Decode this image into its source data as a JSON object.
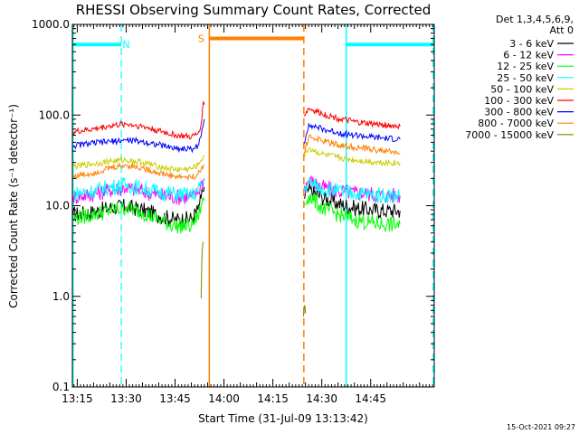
{
  "chart_data": {
    "type": "line",
    "title": "RHESSI Observing Summary Count Rates, Corrected",
    "xlabel": "Start Time (31-Jul-09 13:13:42)",
    "ylabel": "Corrected Count Rate (s⁻¹ detector⁻¹)",
    "ylog": true,
    "ylim": [
      0.1,
      1000
    ],
    "xlim_min": [
      13.5,
      124.5
    ],
    "x_unit": "minutes after 13:00 on 31-Jul-09",
    "x_tick_labels": [
      "13:15",
      "13:30",
      "13:45",
      "14:00",
      "14:15",
      "14:30",
      "14:45"
    ],
    "x_ticks_min": [
      15,
      30,
      45,
      60,
      75,
      90,
      105
    ],
    "y_tick_labels": [
      "0.1",
      "1.0",
      "10.0",
      "100.0",
      "1000.0"
    ],
    "y_ticks": [
      0.1,
      1,
      10,
      100,
      1000
    ],
    "legend_header": [
      "Det 1,3,4,5,6,9,",
      "Att 0"
    ],
    "legend_position": "right",
    "series": [
      {
        "name": "3 - 6 keV",
        "color": "#000000",
        "points": [
          [
            13.7,
            8.0
          ],
          [
            20,
            8.5
          ],
          [
            25,
            9.5
          ],
          [
            30,
            9.8
          ],
          [
            35,
            9.0
          ],
          [
            40,
            7.8
          ],
          [
            45,
            7.0
          ],
          [
            50,
            7.2
          ],
          [
            52,
            9.0
          ],
          [
            53,
            12.0
          ],
          [
            53.5,
            14.5
          ],
          [
            54,
            16.0
          ],
          [
            84.5,
            12.0
          ],
          [
            86,
            15.0
          ],
          [
            90,
            12.5
          ],
          [
            95,
            10.5
          ],
          [
            100,
            9.5
          ],
          [
            105,
            9.0
          ],
          [
            110,
            8.8
          ],
          [
            114,
            8.8
          ]
        ]
      },
      {
        "name": "6 - 12 keV",
        "color": "#ff00ff",
        "points": [
          [
            13.7,
            12.5
          ],
          [
            20,
            13.5
          ],
          [
            25,
            15.0
          ],
          [
            30,
            15.8
          ],
          [
            35,
            14.5
          ],
          [
            40,
            13.0
          ],
          [
            45,
            12.5
          ],
          [
            50,
            12.5
          ],
          [
            52,
            14.0
          ],
          [
            53,
            17.0
          ],
          [
            54,
            20.0
          ],
          [
            84.5,
            15.5
          ],
          [
            86,
            19.0
          ],
          [
            90,
            16.0
          ],
          [
            95,
            14.5
          ],
          [
            100,
            14.0
          ],
          [
            105,
            13.5
          ],
          [
            110,
            13.0
          ],
          [
            114,
            13.0
          ]
        ]
      },
      {
        "name": "12 - 25 keV",
        "color": "#00ff00",
        "points": [
          [
            13.7,
            7.2
          ],
          [
            20,
            8.0
          ],
          [
            25,
            8.8
          ],
          [
            30,
            9.5
          ],
          [
            35,
            8.5
          ],
          [
            40,
            7.0
          ],
          [
            45,
            6.0
          ],
          [
            50,
            6.0
          ],
          [
            52,
            7.5
          ],
          [
            53,
            10.0
          ],
          [
            54,
            12.0
          ],
          [
            84.5,
            10.0
          ],
          [
            86,
            13.0
          ],
          [
            90,
            9.5
          ],
          [
            95,
            8.0
          ],
          [
            100,
            7.0
          ],
          [
            105,
            6.5
          ],
          [
            110,
            6.2
          ],
          [
            114,
            6.2
          ]
        ]
      },
      {
        "name": "25 - 50 keV",
        "color": "#00ffff",
        "points": [
          [
            13.7,
            13.5
          ],
          [
            20,
            14.5
          ],
          [
            25,
            16.0
          ],
          [
            30,
            17.0
          ],
          [
            35,
            15.5
          ],
          [
            40,
            14.0
          ],
          [
            45,
            13.5
          ],
          [
            50,
            13.0
          ],
          [
            52,
            14.5
          ],
          [
            53,
            17.0
          ],
          [
            54,
            19.0
          ],
          [
            84.5,
            15.0
          ],
          [
            86,
            18.0
          ],
          [
            90,
            15.5
          ],
          [
            95,
            14.5
          ],
          [
            100,
            13.8
          ],
          [
            105,
            13.2
          ],
          [
            110,
            13.0
          ],
          [
            114,
            12.8
          ]
        ]
      },
      {
        "name": "50 - 100 keV",
        "color": "#cccc00",
        "points": [
          [
            13.7,
            27.0
          ],
          [
            20,
            29.0
          ],
          [
            25,
            31.0
          ],
          [
            30,
            32.0
          ],
          [
            35,
            30.0
          ],
          [
            40,
            27.0
          ],
          [
            45,
            25.0
          ],
          [
            50,
            25.5
          ],
          [
            52,
            28.0
          ],
          [
            53,
            32.0
          ],
          [
            54,
            36.0
          ],
          [
            84.5,
            35.0
          ],
          [
            86,
            43.0
          ],
          [
            90,
            37.0
          ],
          [
            95,
            34.0
          ],
          [
            100,
            32.0
          ],
          [
            105,
            30.5
          ],
          [
            110,
            30.0
          ],
          [
            114,
            29.5
          ]
        ]
      },
      {
        "name": "100 - 300 keV",
        "color": "#ff0000",
        "points": [
          [
            13.7,
            65.0
          ],
          [
            20,
            70.0
          ],
          [
            25,
            76.0
          ],
          [
            30,
            80.0
          ],
          [
            35,
            75.0
          ],
          [
            40,
            67.0
          ],
          [
            45,
            60.0
          ],
          [
            50,
            57.0
          ],
          [
            52,
            62.0
          ],
          [
            53,
            80.0
          ],
          [
            53.7,
            140.0
          ],
          [
            54,
            130.0
          ],
          [
            84.5,
            100.0
          ],
          [
            86,
            118.0
          ],
          [
            90,
            104.0
          ],
          [
            95,
            92.0
          ],
          [
            100,
            84.0
          ],
          [
            105,
            80.0
          ],
          [
            110,
            77.0
          ],
          [
            114,
            75.0
          ]
        ]
      },
      {
        "name": "300 - 800 keV",
        "color": "#0000ff",
        "points": [
          [
            13.7,
            46.0
          ],
          [
            20,
            49.0
          ],
          [
            25,
            51.0
          ],
          [
            30,
            53.0
          ],
          [
            35,
            51.0
          ],
          [
            40,
            47.0
          ],
          [
            45,
            43.0
          ],
          [
            50,
            42.0
          ],
          [
            52,
            46.0
          ],
          [
            53,
            58.0
          ],
          [
            54,
            90.0
          ],
          [
            84.5,
            50.0
          ],
          [
            85,
            55.0
          ],
          [
            86,
            80.0
          ],
          [
            90,
            70.0
          ],
          [
            95,
            64.0
          ],
          [
            100,
            60.0
          ],
          [
            105,
            57.0
          ],
          [
            110,
            55.0
          ],
          [
            114,
            54.0
          ]
        ]
      },
      {
        "name": "800 - 7000 keV",
        "color": "#ff8000",
        "points": [
          [
            13.7,
            21.0
          ],
          [
            20,
            23.0
          ],
          [
            25,
            26.0
          ],
          [
            30,
            28.0
          ],
          [
            35,
            26.0
          ],
          [
            40,
            23.0
          ],
          [
            45,
            21.0
          ],
          [
            50,
            20.5
          ],
          [
            52,
            22.0
          ],
          [
            53,
            25.0
          ],
          [
            54,
            28.0
          ],
          [
            84.5,
            39.0
          ],
          [
            85,
            44.0
          ],
          [
            86,
            58.0
          ],
          [
            90,
            52.0
          ],
          [
            95,
            47.0
          ],
          [
            100,
            44.0
          ],
          [
            105,
            42.0
          ],
          [
            110,
            40.0
          ],
          [
            114,
            38.0
          ]
        ]
      },
      {
        "name": "7000 - 15000 keV",
        "color": "#808000",
        "points": [
          [
            53.0,
            0.95
          ],
          [
            53.2,
            2.5
          ],
          [
            53.4,
            3.5
          ],
          [
            53.6,
            4.0
          ],
          [
            84.4,
            0.6
          ],
          [
            84.6,
            0.75
          ],
          [
            84.8,
            0.8
          ],
          [
            85.0,
            0.65
          ]
        ]
      }
    ],
    "annotations": [
      {
        "label": "N",
        "kind": "night",
        "color": "#00ffff",
        "bars_min": [
          [
            13.5,
            28.5
          ],
          [
            97.5,
            124.5
          ]
        ],
        "line_min": 28.5,
        "x_min": 30.0,
        "bar_level": 600,
        "edge_lines_min": [
          13.7,
          97.5,
          124.2
        ]
      },
      {
        "label": "S",
        "kind": "saa",
        "color": "#ff8000",
        "bars_min": [
          [
            55.5,
            84.5
          ]
        ],
        "x_min": 53.0,
        "bar_level": 700,
        "edge_lines_min": [
          55.5,
          84.5
        ]
      }
    ]
  },
  "footer": {
    "timestamp": "15-Oct-2021 09:27"
  }
}
